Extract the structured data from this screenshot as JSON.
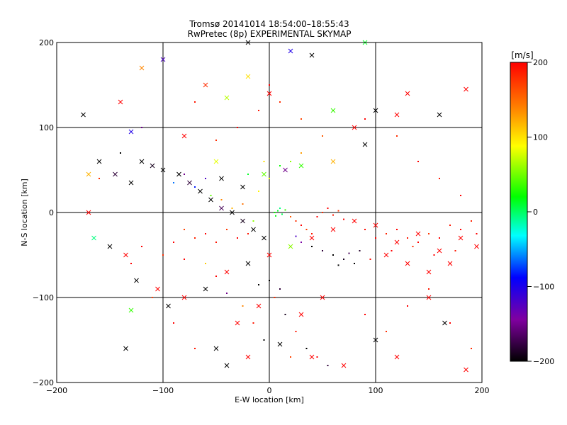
{
  "chart_data": {
    "type": "scatter",
    "title": "Tromsø 20141014 18:54:00–18:55:43",
    "subtitle": "RwPretec (8p) EXPERIMENTAL SKYMAP",
    "xlabel": "E-W location [km]",
    "ylabel": "N-S location [km]",
    "xlim": [
      -200,
      200
    ],
    "ylim": [
      -200,
      200
    ],
    "x_ticks": [
      -200,
      -100,
      0,
      100,
      200
    ],
    "y_ticks": [
      -200,
      -100,
      0,
      100,
      200
    ],
    "x_tick_labels": [
      "−200",
      "−100",
      "0",
      "100",
      "200"
    ],
    "y_tick_labels": [
      "−200",
      "−100",
      "0",
      "100",
      "200"
    ],
    "grid": true,
    "marker_types": [
      "dot",
      "x"
    ],
    "series": [
      {
        "marker": "dot",
        "points": [
          [
            5,
            0,
            30
          ],
          [
            8,
            2,
            20
          ],
          [
            12,
            -2,
            10
          ],
          [
            15,
            3,
            40
          ],
          [
            10,
            5,
            0
          ],
          [
            6,
            -4,
            25
          ],
          [
            20,
            -5,
            160
          ],
          [
            25,
            -10,
            180
          ],
          [
            30,
            -15,
            200
          ],
          [
            35,
            -20,
            170
          ],
          [
            40,
            -25,
            190
          ],
          [
            45,
            -5,
            200
          ],
          [
            50,
            0,
            180
          ],
          [
            55,
            5,
            200
          ],
          [
            60,
            -3,
            190
          ],
          [
            65,
            2,
            175
          ],
          [
            70,
            -8,
            200
          ],
          [
            80,
            -10,
            180
          ],
          [
            90,
            -20,
            195
          ],
          [
            100,
            -30,
            200
          ],
          [
            110,
            -25,
            185
          ],
          [
            120,
            -20,
            200
          ],
          [
            130,
            -30,
            190
          ],
          [
            140,
            -35,
            200
          ],
          [
            150,
            -25,
            175
          ],
          [
            160,
            -30,
            200
          ],
          [
            170,
            -15,
            190
          ],
          [
            180,
            -20,
            200
          ],
          [
            190,
            -10,
            185
          ],
          [
            195,
            -25,
            200
          ],
          [
            175,
            -45,
            190
          ],
          [
            155,
            -50,
            200
          ],
          [
            135,
            -40,
            180
          ],
          [
            115,
            -45,
            200
          ],
          [
            95,
            -55,
            195
          ],
          [
            -20,
            -25,
            190
          ],
          [
            -30,
            -30,
            200
          ],
          [
            -40,
            -20,
            175
          ],
          [
            -50,
            -35,
            190
          ],
          [
            -60,
            -25,
            200
          ],
          [
            -70,
            -30,
            185
          ],
          [
            -80,
            -20,
            170
          ],
          [
            -90,
            -35,
            200
          ],
          [
            -25,
            10,
            150
          ],
          [
            -35,
            5,
            120
          ],
          [
            -45,
            15,
            140
          ],
          [
            -15,
            -10,
            60
          ],
          [
            -10,
            25,
            90
          ],
          [
            0,
            40,
            80
          ],
          [
            10,
            55,
            30
          ],
          [
            20,
            60,
            60
          ],
          [
            30,
            70,
            130
          ],
          [
            -5,
            60,
            100
          ],
          [
            -20,
            45,
            20
          ],
          [
            -60,
            40,
            -120
          ],
          [
            -70,
            30,
            -80
          ],
          [
            -80,
            45,
            -150
          ],
          [
            -90,
            35,
            -60
          ],
          [
            -55,
            20,
            50
          ],
          [
            40,
            -40,
            -200
          ],
          [
            50,
            -45,
            -180
          ],
          [
            60,
            -50,
            -200
          ],
          [
            70,
            -55,
            -190
          ],
          [
            80,
            -60,
            -200
          ],
          [
            75,
            -48,
            -170
          ],
          [
            65,
            -62,
            -200
          ],
          [
            85,
            -45,
            -185
          ],
          [
            30,
            -35,
            -140
          ],
          [
            25,
            -28,
            -120
          ],
          [
            20,
            -40,
            -160
          ],
          [
            0,
            -80,
            -200
          ],
          [
            10,
            -90,
            -180
          ],
          [
            -10,
            -85,
            -200
          ],
          [
            5,
            -100,
            180
          ],
          [
            15,
            -120,
            -190
          ],
          [
            25,
            -140,
            190
          ],
          [
            35,
            -160,
            -200
          ],
          [
            45,
            -170,
            200
          ],
          [
            55,
            -180,
            -180
          ],
          [
            20,
            -170,
            170
          ],
          [
            -5,
            -150,
            -200
          ],
          [
            -15,
            -130,
            190
          ],
          [
            -25,
            -110,
            140
          ],
          [
            -40,
            -95,
            -150
          ],
          [
            -50,
            -75,
            200
          ],
          [
            -60,
            -60,
            110
          ],
          [
            -80,
            -55,
            200
          ],
          [
            -100,
            -50,
            180
          ],
          [
            -120,
            -40,
            200
          ],
          [
            0,
            150,
            200
          ],
          [
            10,
            130,
            180
          ],
          [
            -10,
            120,
            190
          ],
          [
            30,
            110,
            170
          ],
          [
            -30,
            100,
            200
          ],
          [
            50,
            90,
            160
          ],
          [
            -50,
            85,
            180
          ],
          [
            60,
            120,
            200
          ],
          [
            -70,
            130,
            190
          ],
          [
            90,
            110,
            200
          ],
          [
            120,
            90,
            180
          ],
          [
            -120,
            100,
            -150
          ],
          [
            140,
            60,
            200
          ],
          [
            160,
            40,
            190
          ],
          [
            180,
            20,
            200
          ],
          [
            -140,
            70,
            -200
          ],
          [
            -160,
            40,
            180
          ],
          [
            -130,
            -60,
            200
          ],
          [
            -110,
            -100,
            170
          ],
          [
            -90,
            -130,
            200
          ],
          [
            -70,
            -160,
            190
          ],
          [
            90,
            -120,
            200
          ],
          [
            110,
            -140,
            180
          ],
          [
            130,
            -110,
            200
          ],
          [
            150,
            -90,
            190
          ],
          [
            170,
            -130,
            200
          ],
          [
            190,
            -160,
            180
          ]
        ]
      },
      {
        "marker": "x",
        "points": [
          [
            -175,
            115,
            -200
          ],
          [
            -160,
            60,
            -200
          ],
          [
            -145,
            45,
            -180
          ],
          [
            -130,
            35,
            -200
          ],
          [
            -120,
            60,
            -200
          ],
          [
            -110,
            55,
            -190
          ],
          [
            -100,
            50,
            -200
          ],
          [
            -85,
            45,
            -200
          ],
          [
            -75,
            35,
            -180
          ],
          [
            -65,
            25,
            -200
          ],
          [
            -55,
            15,
            -200
          ],
          [
            -45,
            5,
            -170
          ],
          [
            -35,
            0,
            -200
          ],
          [
            -25,
            -10,
            -190
          ],
          [
            -15,
            -20,
            -200
          ],
          [
            -5,
            -30,
            -200
          ],
          [
            -170,
            45,
            120
          ],
          [
            -140,
            130,
            200
          ],
          [
            -130,
            95,
            -100
          ],
          [
            -120,
            170,
            140
          ],
          [
            -100,
            180,
            -120
          ],
          [
            -80,
            90,
            200
          ],
          [
            -60,
            150,
            180
          ],
          [
            -40,
            135,
            70
          ],
          [
            -20,
            160,
            100
          ],
          [
            0,
            140,
            200
          ],
          [
            20,
            190,
            -100
          ],
          [
            40,
            185,
            -200
          ],
          [
            60,
            120,
            40
          ],
          [
            80,
            100,
            200
          ],
          [
            90,
            80,
            -200
          ],
          [
            100,
            120,
            -200
          ],
          [
            120,
            115,
            200
          ],
          [
            130,
            140,
            200
          ],
          [
            160,
            115,
            -200
          ],
          [
            185,
            145,
            200
          ],
          [
            -170,
            0,
            200
          ],
          [
            -165,
            -30,
            0
          ],
          [
            -150,
            -40,
            -200
          ],
          [
            -135,
            -50,
            200
          ],
          [
            -125,
            -80,
            -200
          ],
          [
            -105,
            -90,
            200
          ],
          [
            -95,
            -110,
            -200
          ],
          [
            -80,
            -100,
            200
          ],
          [
            -60,
            -90,
            -200
          ],
          [
            -40,
            -70,
            200
          ],
          [
            -20,
            -60,
            -200
          ],
          [
            0,
            -50,
            200
          ],
          [
            20,
            -40,
            60
          ],
          [
            40,
            -30,
            200
          ],
          [
            60,
            -20,
            200
          ],
          [
            80,
            -10,
            200
          ],
          [
            100,
            -15,
            200
          ],
          [
            120,
            -35,
            200
          ],
          [
            140,
            -25,
            200
          ],
          [
            160,
            -45,
            200
          ],
          [
            180,
            -30,
            200
          ],
          [
            195,
            -40,
            200
          ],
          [
            170,
            -60,
            200
          ],
          [
            150,
            -70,
            200
          ],
          [
            130,
            -60,
            200
          ],
          [
            110,
            -50,
            200
          ],
          [
            -130,
            -115,
            40
          ],
          [
            -135,
            -160,
            -200
          ],
          [
            -50,
            -160,
            -200
          ],
          [
            -40,
            -180,
            -200
          ],
          [
            -20,
            -170,
            200
          ],
          [
            10,
            -155,
            -200
          ],
          [
            40,
            -170,
            200
          ],
          [
            70,
            -180,
            200
          ],
          [
            100,
            -150,
            -200
          ],
          [
            120,
            -170,
            200
          ],
          [
            150,
            -100,
            200
          ],
          [
            165,
            -130,
            -200
          ],
          [
            185,
            -185,
            200
          ],
          [
            30,
            -120,
            200
          ],
          [
            50,
            -100,
            200
          ],
          [
            -10,
            -110,
            200
          ],
          [
            -30,
            -130,
            200
          ],
          [
            60,
            60,
            120
          ],
          [
            30,
            55,
            40
          ],
          [
            15,
            50,
            -150
          ],
          [
            -5,
            45,
            50
          ],
          [
            -25,
            30,
            -200
          ],
          [
            -45,
            40,
            -200
          ],
          [
            -50,
            60,
            80
          ],
          [
            90,
            200,
            20
          ],
          [
            -20,
            200,
            -200
          ]
        ]
      }
    ],
    "colorbar": {
      "label": "[m/s]",
      "range": [
        -200,
        200
      ],
      "ticks": [
        -200,
        -100,
        0,
        100,
        200
      ],
      "tick_labels": [
        "−200",
        "−100",
        "0",
        "100",
        "200"
      ],
      "colormap": [
        "#000000",
        "#8000a0",
        "#0000ff",
        "#00ffff",
        "#00ff00",
        "#ffff00",
        "#ff8000",
        "#ff0000"
      ]
    }
  }
}
